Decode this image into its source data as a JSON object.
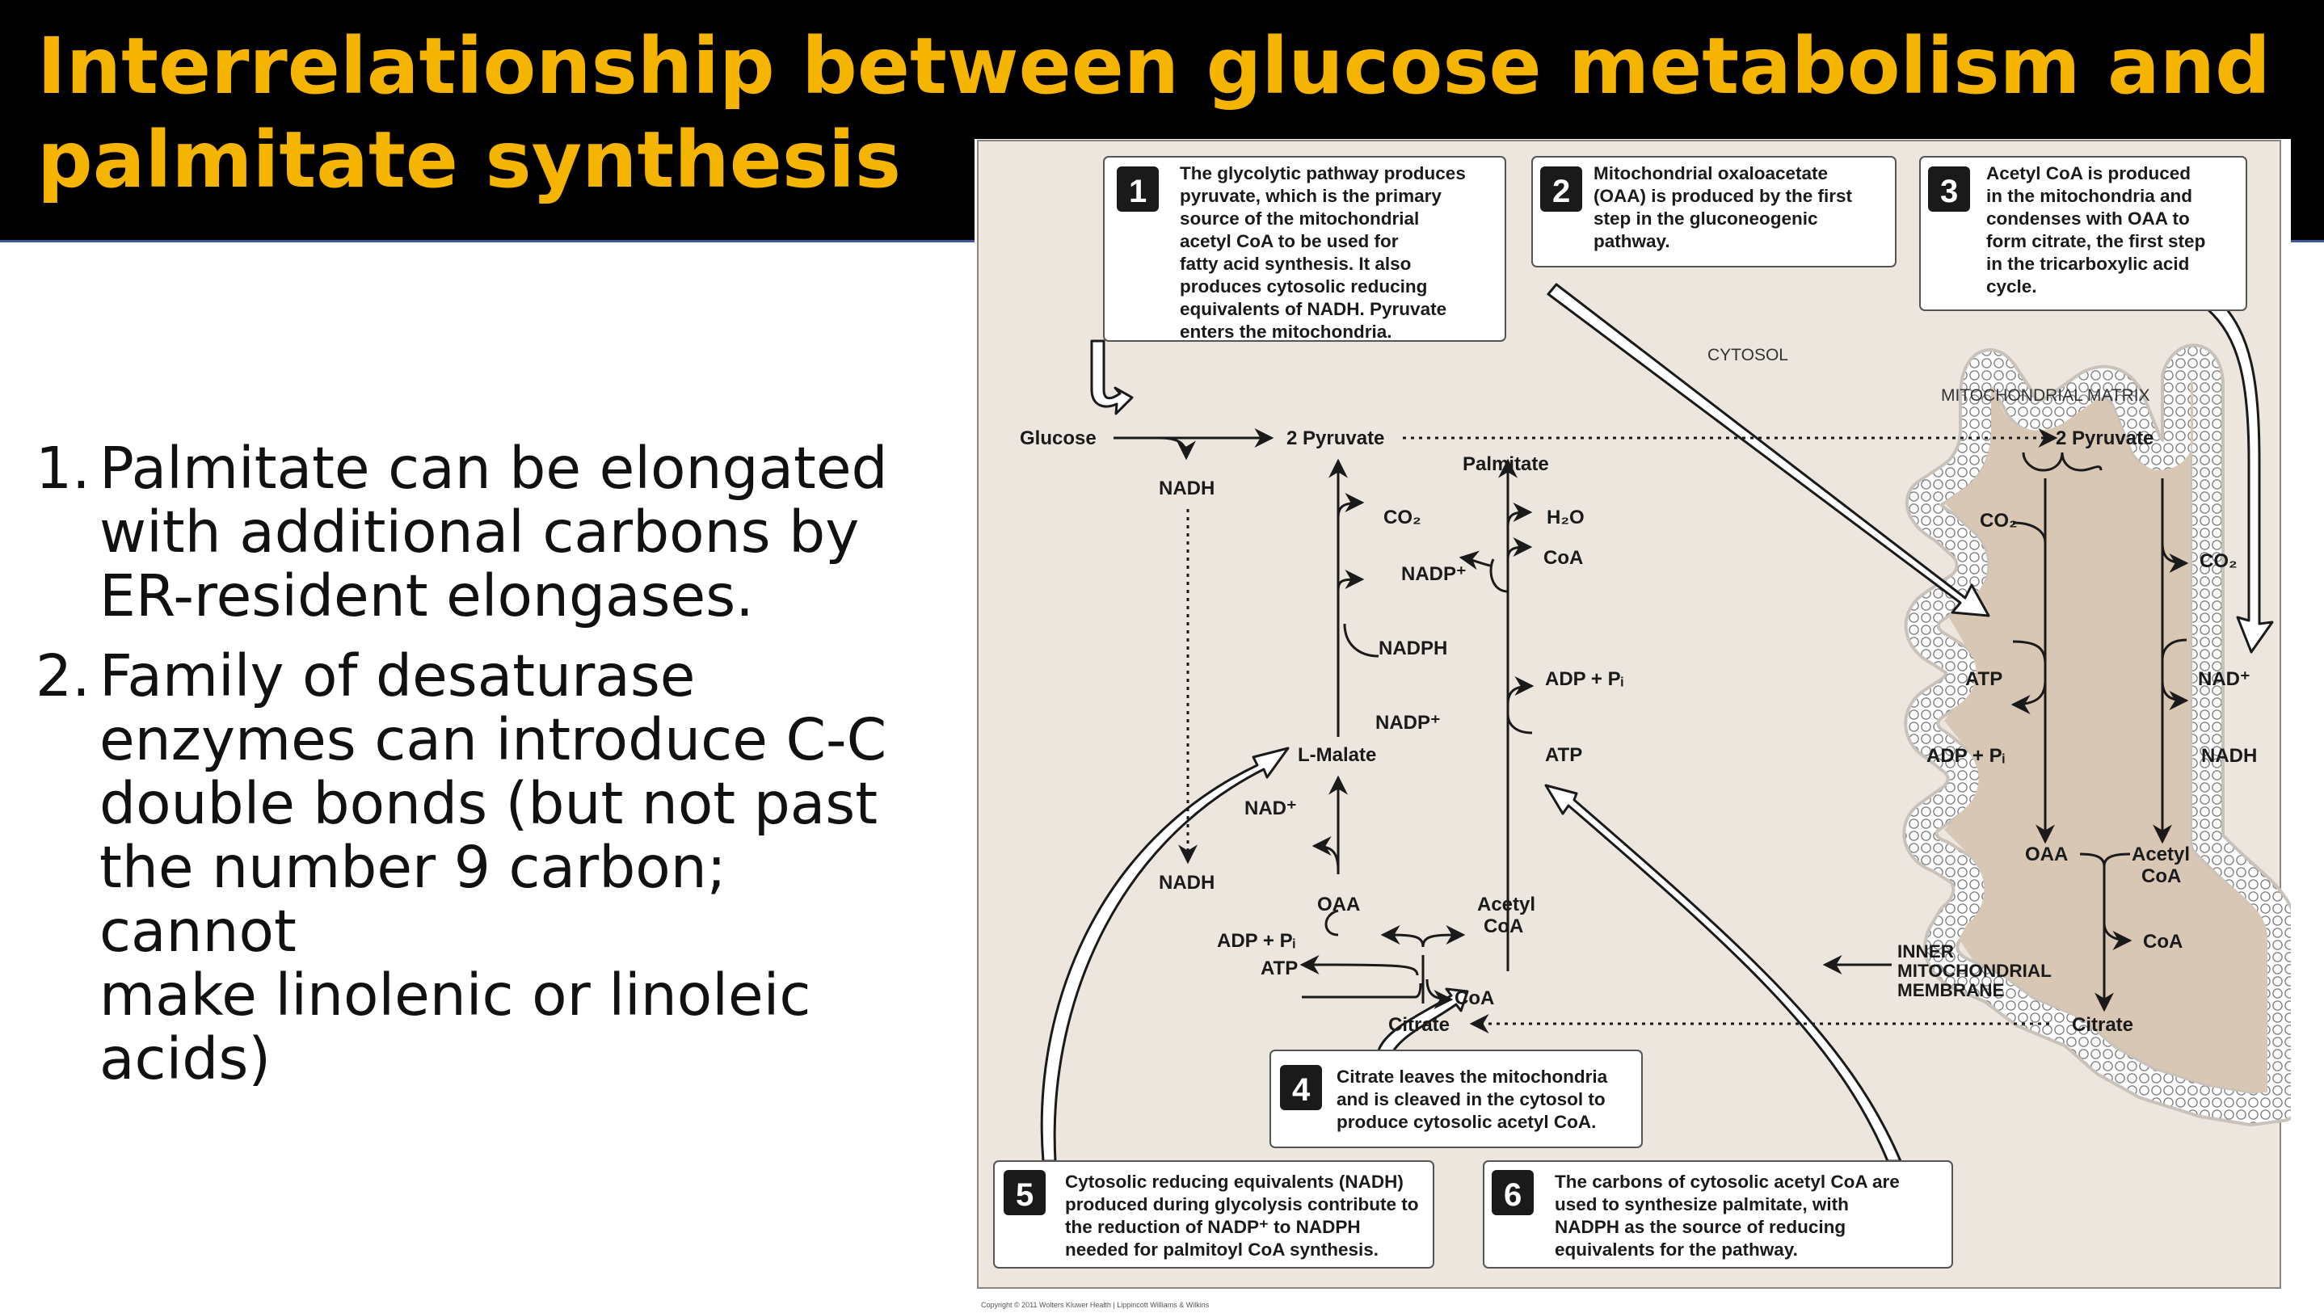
{
  "title": {
    "line1": "Interrelationship between glucose metabolism and",
    "line2": "palmitate synthesis"
  },
  "points": [
    {
      "num": "1.",
      "lines": [
        "Palmitate can be elongated",
        "with additional carbons by",
        "ER-resident elongases."
      ]
    },
    {
      "num": "2.",
      "lines": [
        "Family of desaturase",
        "enzymes can introduce C-C",
        "double bonds (but not past",
        "the number 9 carbon; cannot",
        "make linolenic or linoleic",
        "acids)"
      ]
    }
  ],
  "figure": {
    "steps": [
      {
        "n": "1",
        "lines": [
          "The glycolytic pathway produces",
          "pyruvate, which is the primary",
          "source of the mitochondrial",
          "acetyl CoA to be used for",
          "fatty acid synthesis.  It also",
          "produces cytosolic reducing",
          "equivalents of NADH. Pyruvate",
          "enters the mitochondria."
        ]
      },
      {
        "n": "2",
        "lines": [
          "Mitochondrial oxaloacetate",
          "(OAA) is produced by the first",
          "step in the gluconeogenic",
          "pathway."
        ]
      },
      {
        "n": "3",
        "lines": [
          "Acetyl CoA is produced",
          "in the mitochondria and",
          "condenses with OAA to",
          "form citrate, the first step",
          "in the tricarboxylic acid",
          "cycle."
        ]
      },
      {
        "n": "4",
        "lines": [
          "Citrate leaves the mitochondria",
          "and is cleaved in the cytosol to",
          "produce cytosolic acetyl CoA."
        ]
      },
      {
        "n": "5",
        "lines": [
          "Cytosolic reducing equivalents (NADH)",
          "produced during glycolysis contribute to",
          "the reduction of NADP⁺ to NADPH",
          "needed for palmitoyl CoA synthesis."
        ]
      },
      {
        "n": "6",
        "lines": [
          "The carbons of cytosolic acetyl CoA are",
          "used to synthesize palmitate, with",
          "NADPH as the source of reducing",
          "equivalents for the pathway."
        ]
      }
    ],
    "regions": {
      "cytosol": "CYTOSOL",
      "matrix": "MITOCHONDRIAL MATRIX",
      "membrane": [
        "INNER",
        "MITOCHONDRIAL",
        "MEMBRANE"
      ]
    },
    "labels": {
      "glucose": "Glucose",
      "pyruvate_cyto": "2 Pyruvate",
      "nadh_top": "NADH",
      "nadh_bottom": "NADH",
      "palmitate": "Palmitate",
      "co2_cyto": "CO₂",
      "h2o": "H₂O",
      "nadp_plus_1": "NADP⁺",
      "coa_1": "CoA",
      "nadph": "NADPH",
      "adp_pi_1": "ADP + Pᵢ",
      "nadp_plus_2": "NADP⁺",
      "lmalate": "L-Malate",
      "atp_1": "ATP",
      "nad_plus_cyto": "NAD⁺",
      "oaa_cyto": "OAA",
      "acetyl_coa_cyto": [
        "Acetyl",
        "CoA"
      ],
      "adp_pi_2": "ADP + Pᵢ",
      "atp_2": "ATP",
      "coa_2": "CoA",
      "citrate_cyto": "Citrate",
      "pyruvate_mito": "2 Pyruvate",
      "co2_mito_l": "CO₂",
      "co2_mito_r": "CO₂",
      "atp_mito": "ATP",
      "nad_plus_mito": "NAD⁺",
      "adp_pi_mito": "ADP + Pᵢ",
      "nadh_mito": "NADH",
      "oaa_mito": "OAA",
      "acetyl_coa_mito": [
        "Acetyl",
        "CoA"
      ],
      "coa_mito": "CoA",
      "citrate_mito": "Citrate"
    },
    "copyright": "Copyright © 2011 Wolters Kluwer Health | Lippincott Williams & Wilkins"
  }
}
